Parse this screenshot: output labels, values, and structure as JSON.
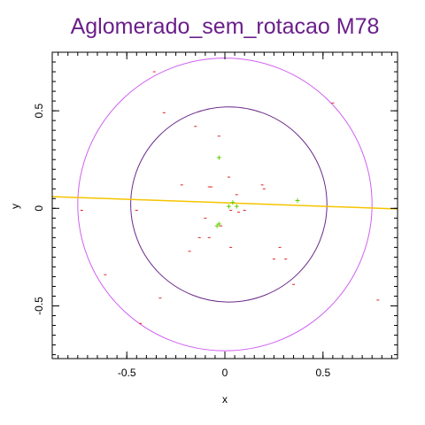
{
  "chart_data": {
    "type": "scatter",
    "title": "Aglomerado_sem_rotacao M78",
    "xlabel": "x",
    "ylabel": "y",
    "xlim": [
      -0.88,
      0.88
    ],
    "ylim": [
      -0.77,
      0.8
    ],
    "xticks": [
      -0.5,
      0,
      0.5
    ],
    "xtick_labels": [
      "-0.5",
      "0",
      "0.5"
    ],
    "yticks": [
      -0.5,
      0,
      0.5
    ],
    "ytick_labels": [
      "-0.5",
      "0",
      "0.5"
    ],
    "grid": false,
    "colors": {
      "title": "#6a1f8a",
      "outer_circle": "#d060f0",
      "inner_circle": "#6a2a8a",
      "fit_line": "#f5c400",
      "minus_markers": "#e02020",
      "plus_markers": "#66cc00"
    },
    "circles": [
      {
        "name": "outer",
        "center": [
          0.0,
          0.02
        ],
        "radius": 0.75
      },
      {
        "name": "inner",
        "center": [
          0.02,
          0.02
        ],
        "radius": 0.5
      }
    ],
    "line": {
      "x": [
        -0.88,
        0.88
      ],
      "y": [
        0.06,
        -0.003
      ]
    },
    "series": [
      {
        "marker": "minus",
        "points": [
          [
            -0.36,
            0.7
          ],
          [
            0.55,
            0.54
          ],
          [
            -0.31,
            0.49
          ],
          [
            -0.15,
            0.42
          ],
          [
            -0.03,
            0.37
          ],
          [
            -0.22,
            0.12
          ],
          [
            -0.07,
            0.11
          ],
          [
            -0.08,
            0.11
          ],
          [
            0.02,
            0.16
          ],
          [
            0.06,
            0.07
          ],
          [
            0.19,
            0.12
          ],
          [
            0.2,
            0.1
          ],
          [
            -0.73,
            -0.01
          ],
          [
            -0.45,
            -0.01
          ],
          [
            -0.1,
            -0.05
          ],
          [
            0.1,
            -0.01
          ],
          [
            0.07,
            -0.02
          ],
          [
            0.03,
            -0.01
          ],
          [
            -0.13,
            -0.15
          ],
          [
            -0.08,
            -0.15
          ],
          [
            -0.18,
            -0.22
          ],
          [
            0.03,
            -0.2
          ],
          [
            0.28,
            -0.2
          ],
          [
            0.25,
            -0.26
          ],
          [
            0.31,
            -0.26
          ],
          [
            -0.61,
            -0.34
          ],
          [
            -0.33,
            -0.46
          ],
          [
            0.35,
            -0.39
          ],
          [
            -0.43,
            -0.59
          ],
          [
            0.78,
            -0.47
          ],
          [
            -0.02,
            -0.09
          ]
        ]
      },
      {
        "marker": "plus",
        "points": [
          [
            -0.03,
            0.26
          ],
          [
            0.02,
            0.01
          ],
          [
            0.04,
            0.03
          ],
          [
            0.06,
            0.01
          ],
          [
            -0.03,
            -0.08
          ],
          [
            -0.04,
            -0.09
          ],
          [
            0.37,
            0.04
          ]
        ]
      }
    ]
  }
}
